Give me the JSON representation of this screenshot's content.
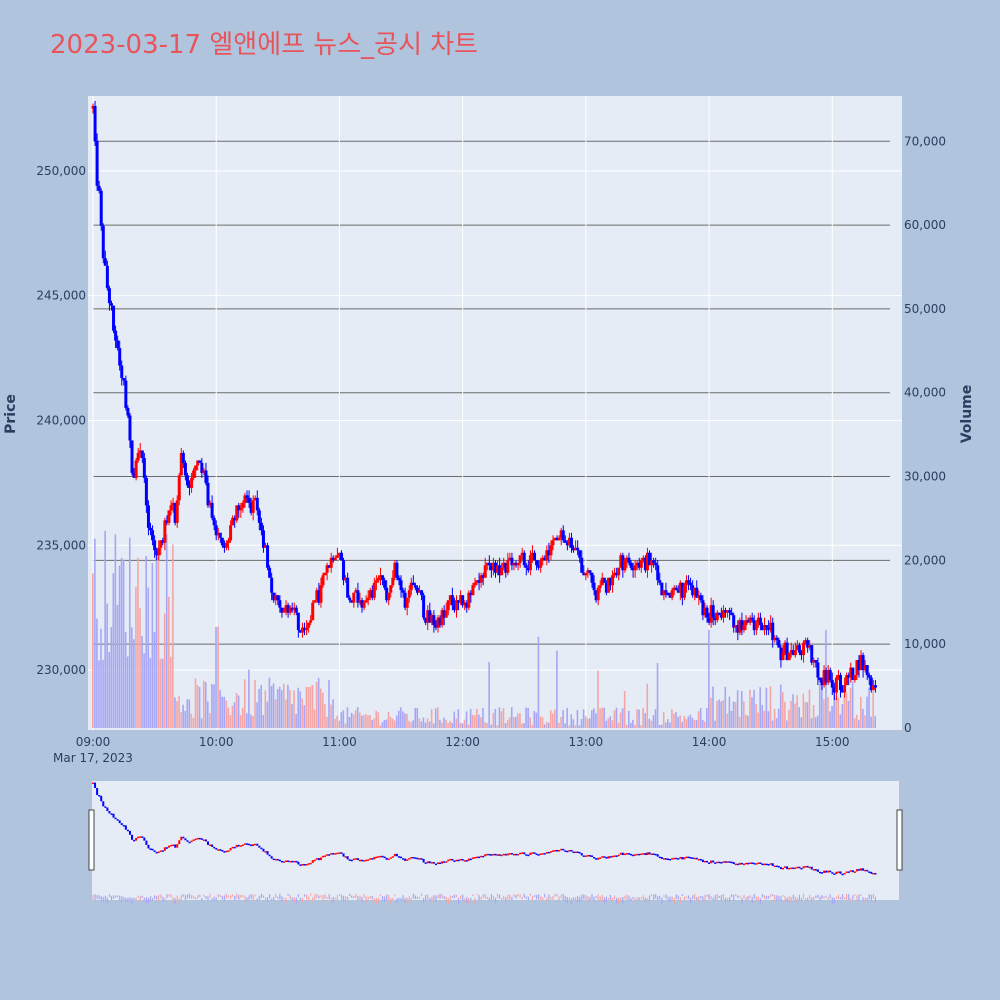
{
  "title": "2023-03-17 엘앤에프 뉴스_공시 차트",
  "colors": {
    "page_bg": "#b0c4de",
    "plot_bg": "#e5ecf6",
    "title": "#e8545a",
    "up": "#ff0000",
    "down": "#0000ff",
    "up_volume": "#f4a6a6",
    "down_volume": "#a6a6f4",
    "volume_grid": "#6b6b6b"
  },
  "chart_data": {
    "type": "candlestick",
    "title": "2023-03-17 엘앤에프 뉴스_공시 차트",
    "ylabel": "Price",
    "y2label": "Volume",
    "date_label": "Mar 17, 2023",
    "x_ticks": [
      "09:00",
      "10:00",
      "11:00",
      "12:00",
      "13:00",
      "14:00",
      "15:00"
    ],
    "y_ticks": [
      230000,
      235000,
      240000,
      245000,
      250000
    ],
    "y_tick_labels": [
      "230,000",
      "235,000",
      "240,000",
      "245,000",
      "250,000"
    ],
    "y2_ticks": [
      0,
      10000,
      20000,
      30000,
      40000,
      50000,
      60000,
      70000
    ],
    "y2_tick_labels": [
      "0",
      "10,000",
      "20,000",
      "30,000",
      "40,000",
      "50,000",
      "60,000",
      "70,000"
    ],
    "ylim": [
      227600,
      253000
    ],
    "y2lim": [
      0,
      75400
    ],
    "xlim_minutes": [
      0,
      392
    ],
    "grid": true,
    "rangeslider": true,
    "price_path": [
      [
        0,
        252500
      ],
      [
        1,
        250000
      ],
      [
        2,
        249000
      ],
      [
        3,
        247000
      ],
      [
        4,
        246000
      ],
      [
        5,
        245000
      ],
      [
        6,
        244500
      ],
      [
        7,
        243500
      ],
      [
        8,
        243000
      ],
      [
        9,
        242000
      ],
      [
        10,
        241500
      ],
      [
        11,
        240500
      ],
      [
        12,
        239500
      ],
      [
        13,
        237500
      ],
      [
        14,
        238500
      ],
      [
        15,
        239000
      ],
      [
        16,
        238500
      ],
      [
        17,
        237500
      ],
      [
        18,
        236000
      ],
      [
        19,
        235500
      ],
      [
        20,
        235000
      ],
      [
        21,
        234500
      ],
      [
        22,
        235000
      ],
      [
        23,
        235500
      ],
      [
        24,
        236000
      ],
      [
        25,
        236500
      ],
      [
        26,
        236500
      ],
      [
        27,
        236000
      ],
      [
        28,
        237500
      ],
      [
        29,
        238500
      ],
      [
        30,
        238000
      ],
      [
        31,
        237500
      ],
      [
        32,
        237500
      ],
      [
        33,
        237800
      ],
      [
        34,
        238500
      ],
      [
        35,
        238500
      ],
      [
        36,
        238000
      ],
      [
        37,
        237500
      ],
      [
        38,
        236500
      ],
      [
        39,
        236000
      ],
      [
        40,
        235500
      ],
      [
        41,
        235500
      ],
      [
        42,
        235500
      ],
      [
        43,
        235000
      ],
      [
        44,
        235000
      ],
      [
        45,
        235500
      ],
      [
        46,
        236000
      ],
      [
        47,
        236300
      ],
      [
        48,
        236500
      ],
      [
        49,
        236500
      ],
      [
        50,
        236800
      ],
      [
        51,
        237000
      ],
      [
        52,
        236500
      ],
      [
        53,
        236800
      ],
      [
        54,
        236500
      ],
      [
        55,
        235500
      ],
      [
        56,
        235000
      ],
      [
        57,
        234500
      ],
      [
        58,
        233500
      ],
      [
        59,
        233000
      ],
      [
        60,
        232800
      ],
      [
        61,
        232600
      ],
      [
        62,
        232400
      ],
      [
        63,
        232200
      ],
      [
        64,
        232500
      ],
      [
        65,
        232000
      ],
      [
        66,
        232300
      ],
      [
        67,
        232000
      ],
      [
        68,
        231500
      ],
      [
        69,
        231200
      ],
      [
        70,
        231500
      ],
      [
        71,
        232000
      ],
      [
        72,
        232500
      ],
      [
        73,
        232800
      ],
      [
        74,
        233000
      ],
      [
        75,
        233500
      ],
      [
        76,
        233800
      ],
      [
        77,
        234000
      ],
      [
        78,
        234500
      ],
      [
        79,
        234800
      ],
      [
        80,
        234800
      ],
      [
        81,
        234500
      ],
      [
        82,
        233800
      ],
      [
        83,
        233200
      ],
      [
        84,
        233000
      ],
      [
        85,
        232800
      ],
      [
        86,
        232800
      ],
      [
        87,
        233000
      ],
      [
        88,
        232800
      ],
      [
        89,
        232600
      ],
      [
        90,
        232800
      ],
      [
        91,
        233000
      ],
      [
        92,
        233500
      ],
      [
        93,
        233800
      ],
      [
        94,
        233500
      ],
      [
        95,
        233200
      ],
      [
        96,
        233000
      ],
      [
        97,
        233500
      ],
      [
        98,
        233800
      ],
      [
        99,
        234000
      ],
      [
        100,
        233500
      ],
      [
        101,
        233000
      ],
      [
        102,
        232800
      ],
      [
        103,
        233000
      ],
      [
        104,
        233500
      ],
      [
        105,
        233800
      ],
      [
        106,
        233500
      ],
      [
        107,
        233000
      ],
      [
        108,
        232500
      ],
      [
        109,
        232200
      ],
      [
        110,
        232000
      ],
      [
        111,
        232000
      ],
      [
        112,
        231800
      ],
      [
        113,
        232000
      ],
      [
        114,
        232200
      ],
      [
        115,
        232000
      ],
      [
        116,
        232500
      ],
      [
        117,
        232800
      ],
      [
        118,
        232600
      ],
      [
        119,
        232500
      ],
      [
        120,
        232600
      ],
      [
        121,
        232800
      ],
      [
        122,
        232600
      ],
      [
        123,
        233000
      ],
      [
        124,
        233200
      ],
      [
        125,
        233400
      ],
      [
        126,
        233500
      ],
      [
        127,
        233600
      ],
      [
        128,
        233800
      ],
      [
        129,
        234000
      ],
      [
        130,
        234000
      ],
      [
        131,
        234200
      ],
      [
        132,
        234000
      ],
      [
        133,
        233800
      ],
      [
        134,
        234000
      ],
      [
        135,
        233900
      ],
      [
        136,
        234200
      ],
      [
        137,
        234400
      ],
      [
        138,
        234300
      ],
      [
        139,
        234200
      ],
      [
        140,
        234400
      ],
      [
        141,
        234300
      ],
      [
        142,
        234200
      ],
      [
        143,
        234300
      ],
      [
        144,
        234400
      ],
      [
        145,
        234500
      ],
      [
        146,
        234200
      ],
      [
        147,
        234300
      ],
      [
        148,
        234400
      ],
      [
        149,
        234600
      ],
      [
        150,
        234800
      ],
      [
        151,
        235000
      ],
      [
        152,
        235200
      ],
      [
        153,
        235400
      ],
      [
        154,
        235500
      ],
      [
        155,
        235300
      ],
      [
        156,
        235100
      ],
      [
        157,
        235000
      ],
      [
        158,
        234800
      ],
      [
        159,
        234600
      ],
      [
        160,
        234200
      ],
      [
        161,
        234000
      ],
      [
        162,
        233800
      ],
      [
        163,
        233500
      ],
      [
        164,
        233200
      ],
      [
        165,
        233000
      ],
      [
        166,
        233200
      ],
      [
        167,
        233500
      ],
      [
        168,
        233400
      ],
      [
        169,
        233600
      ],
      [
        170,
        233800
      ],
      [
        171,
        234000
      ],
      [
        172,
        234200
      ],
      [
        173,
        234300
      ],
      [
        174,
        234400
      ],
      [
        175,
        234300
      ],
      [
        176,
        234400
      ],
      [
        177,
        234300
      ],
      [
        178,
        234400
      ],
      [
        179,
        234300
      ],
      [
        180,
        234200
      ],
      [
        181,
        234400
      ],
      [
        182,
        234300
      ],
      [
        183,
        234200
      ],
      [
        184,
        234300
      ],
      [
        185,
        233800
      ],
      [
        186,
        233200
      ],
      [
        187,
        233000
      ],
      [
        188,
        233000
      ],
      [
        189,
        233200
      ],
      [
        190,
        233100
      ],
      [
        191,
        233200
      ],
      [
        192,
        233300
      ],
      [
        193,
        233200
      ],
      [
        194,
        233300
      ],
      [
        195,
        233200
      ],
      [
        196,
        233300
      ],
      [
        197,
        233200
      ],
      [
        198,
        233000
      ],
      [
        199,
        232500
      ],
      [
        200,
        232200
      ],
      [
        201,
        232300
      ],
      [
        202,
        232200
      ],
      [
        203,
        232400
      ],
      [
        204,
        232200
      ],
      [
        205,
        232200
      ],
      [
        206,
        232300
      ],
      [
        207,
        232200
      ],
      [
        208,
        232300
      ],
      [
        209,
        232200
      ],
      [
        210,
        231800
      ],
      [
        211,
        231800
      ],
      [
        212,
        231700
      ],
      [
        213,
        231800
      ],
      [
        214,
        231900
      ],
      [
        215,
        231800
      ],
      [
        216,
        231700
      ],
      [
        217,
        231800
      ],
      [
        218,
        231900
      ],
      [
        219,
        231800
      ],
      [
        220,
        231900
      ],
      [
        221,
        231800
      ],
      [
        222,
        231600
      ],
      [
        223,
        231200
      ],
      [
        224,
        230800
      ],
      [
        225,
        230700
      ],
      [
        226,
        230800
      ],
      [
        227,
        230700
      ],
      [
        228,
        230800
      ],
      [
        229,
        230700
      ],
      [
        230,
        230800
      ],
      [
        231,
        230700
      ],
      [
        232,
        230800
      ],
      [
        233,
        230800
      ],
      [
        234,
        230700
      ],
      [
        235,
        230600
      ],
      [
        236,
        230200
      ],
      [
        237,
        229800
      ],
      [
        238,
        229500
      ],
      [
        239,
        229700
      ],
      [
        240,
        229600
      ],
      [
        241,
        229700
      ],
      [
        242,
        229500
      ],
      [
        243,
        229400
      ],
      [
        244,
        229600
      ],
      [
        245,
        229400
      ],
      [
        246,
        229500
      ],
      [
        247,
        229600
      ],
      [
        248,
        229800
      ],
      [
        249,
        230000
      ],
      [
        250,
        230200
      ],
      [
        251,
        230400
      ],
      [
        252,
        230200
      ],
      [
        253,
        230000
      ],
      [
        254,
        229600
      ],
      [
        255,
        229400
      ],
      [
        256,
        229500
      ]
    ]
  }
}
